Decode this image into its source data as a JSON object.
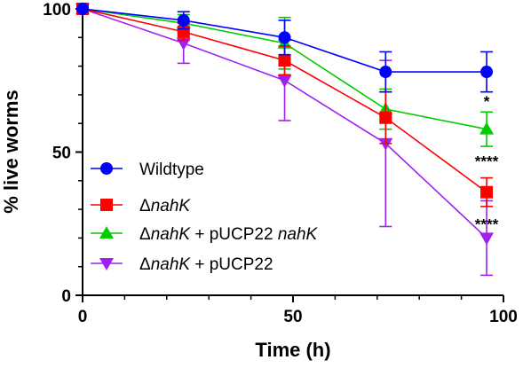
{
  "chart_data": {
    "type": "line",
    "xlabel": "Time (h)",
    "ylabel": "% live worms",
    "xlim": [
      0,
      100
    ],
    "ylim": [
      0,
      100
    ],
    "x_ticks": [
      "0",
      "50",
      "100"
    ],
    "y_ticks": [
      "0",
      "50",
      "100"
    ],
    "legend_position": "bottom-left",
    "series": [
      {
        "name": "Wildtype",
        "legend_parts": [
          {
            "text": "Wildtype",
            "italic": false
          }
        ],
        "color": "#0000FF",
        "marker": "circle",
        "x": [
          0,
          24,
          48,
          72,
          96
        ],
        "y": [
          100,
          96,
          90,
          78,
          78
        ],
        "err": [
          0,
          3,
          6,
          7,
          7
        ]
      },
      {
        "name": "ΔnahK",
        "legend_parts": [
          {
            "text": "Δ",
            "italic": false
          },
          {
            "text": "nahK",
            "italic": true
          }
        ],
        "color": "#FF0000",
        "marker": "square",
        "x": [
          0,
          24,
          48,
          72,
          96
        ],
        "y": [
          100,
          92,
          82,
          62,
          36
        ],
        "err": [
          0,
          3,
          5,
          9,
          5
        ]
      },
      {
        "name": "ΔnahK + pUCP22 nahK",
        "legend_parts": [
          {
            "text": "Δ",
            "italic": false
          },
          {
            "text": "nahK",
            "italic": true
          },
          {
            "text": " + pUCP22 ",
            "italic": false
          },
          {
            "text": "nahK",
            "italic": true
          }
        ],
        "color": "#00CC00",
        "marker": "triangle-up",
        "x": [
          0,
          24,
          48,
          72,
          96
        ],
        "y": [
          100,
          95,
          88,
          65,
          58
        ],
        "err": [
          0,
          3,
          9,
          7,
          6
        ]
      },
      {
        "name": "ΔnahK + pUCP22",
        "legend_parts": [
          {
            "text": "Δ",
            "italic": false
          },
          {
            "text": "nahK",
            "italic": true
          },
          {
            "text": " + pUCP22",
            "italic": false
          }
        ],
        "color": "#A020F0",
        "marker": "triangle-down",
        "x": [
          0,
          24,
          48,
          72,
          96
        ],
        "y": [
          100,
          88,
          75,
          53,
          20
        ],
        "err": [
          0,
          7,
          14,
          29,
          13
        ]
      }
    ],
    "annotations": [
      {
        "text": "*",
        "x": 96,
        "y": 66
      },
      {
        "text": "****",
        "x": 96,
        "y": 45
      },
      {
        "text": "****",
        "x": 96,
        "y": 23
      }
    ]
  }
}
